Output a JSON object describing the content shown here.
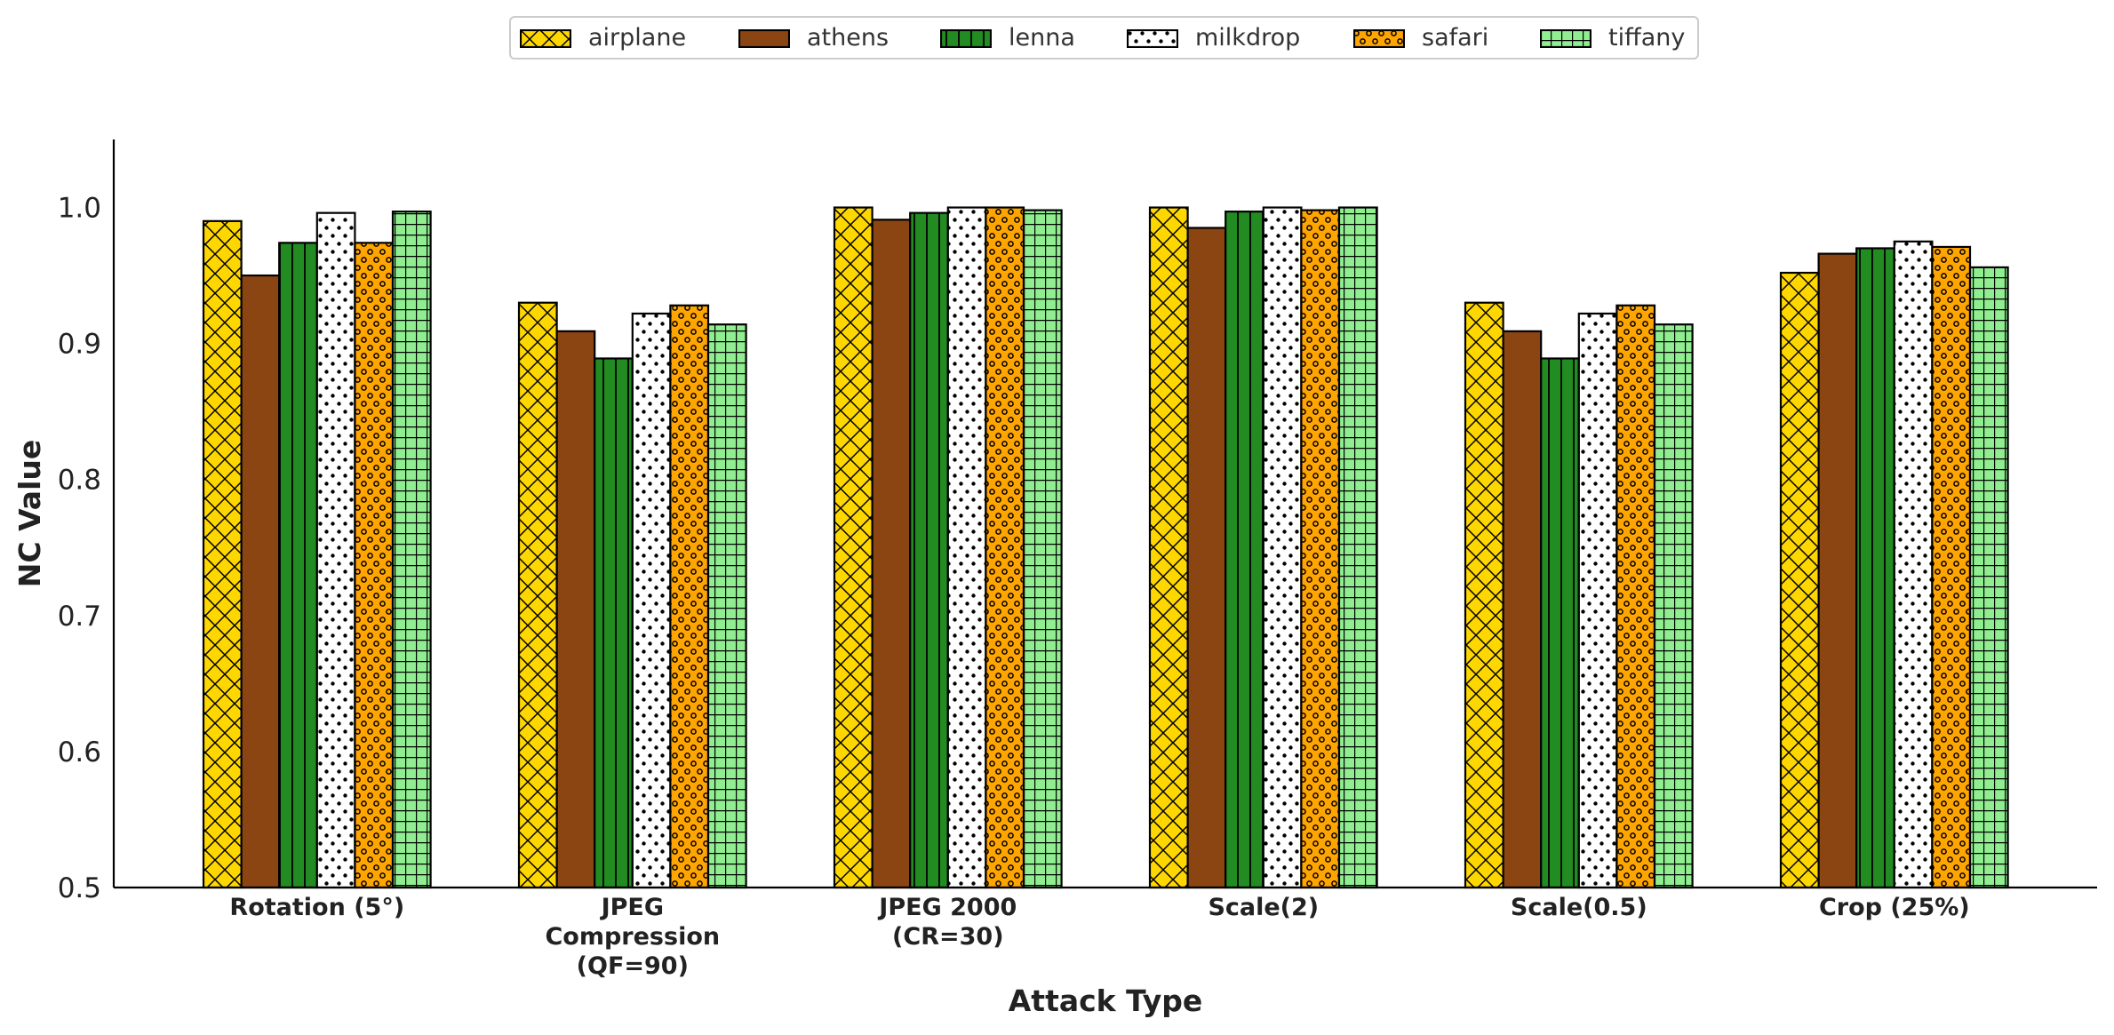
{
  "chart_data": {
    "type": "bar",
    "xlabel": "Attack Type",
    "ylabel": "NC Value",
    "ylim": [
      0.5,
      1.05
    ],
    "yticks": [
      "0.5",
      "0.6",
      "0.7",
      "0.8",
      "0.9",
      "1.0"
    ],
    "legend_position": "top-center",
    "grid": false,
    "categories": [
      [
        "Rotation (5°)"
      ],
      [
        "JPEG",
        "Compression",
        "(QF=90)"
      ],
      [
        "JPEG 2000",
        "(CR=30)"
      ],
      [
        "Scale(2)"
      ],
      [
        "Scale(0.5)"
      ],
      [
        "Crop (25%)"
      ]
    ],
    "series": [
      {
        "name": "airplane",
        "color": "#FFD700",
        "pattern": "crosshatch-diagonal",
        "values": [
          0.99,
          0.93,
          1.0,
          1.0,
          0.93,
          0.952
        ]
      },
      {
        "name": "athens",
        "color": "#8B4513",
        "pattern": "solid",
        "values": [
          0.95,
          0.909,
          0.991,
          0.985,
          0.909,
          0.966
        ]
      },
      {
        "name": "lenna",
        "color": "#228B22",
        "pattern": "vertical-lines",
        "values": [
          0.974,
          0.889,
          0.996,
          0.997,
          0.889,
          0.97
        ]
      },
      {
        "name": "milkdrop",
        "color": "#FFFFFF",
        "pattern": "dots",
        "values": [
          0.996,
          0.922,
          1.0,
          1.0,
          0.922,
          0.975
        ]
      },
      {
        "name": "safari",
        "color": "#FFA500",
        "pattern": "small-circles",
        "values": [
          0.974,
          0.928,
          1.0,
          0.998,
          0.928,
          0.971
        ]
      },
      {
        "name": "tiffany",
        "color": "#90EE90",
        "pattern": "grid",
        "values": [
          0.997,
          0.914,
          0.998,
          1.0,
          0.914,
          0.956
        ]
      }
    ]
  }
}
